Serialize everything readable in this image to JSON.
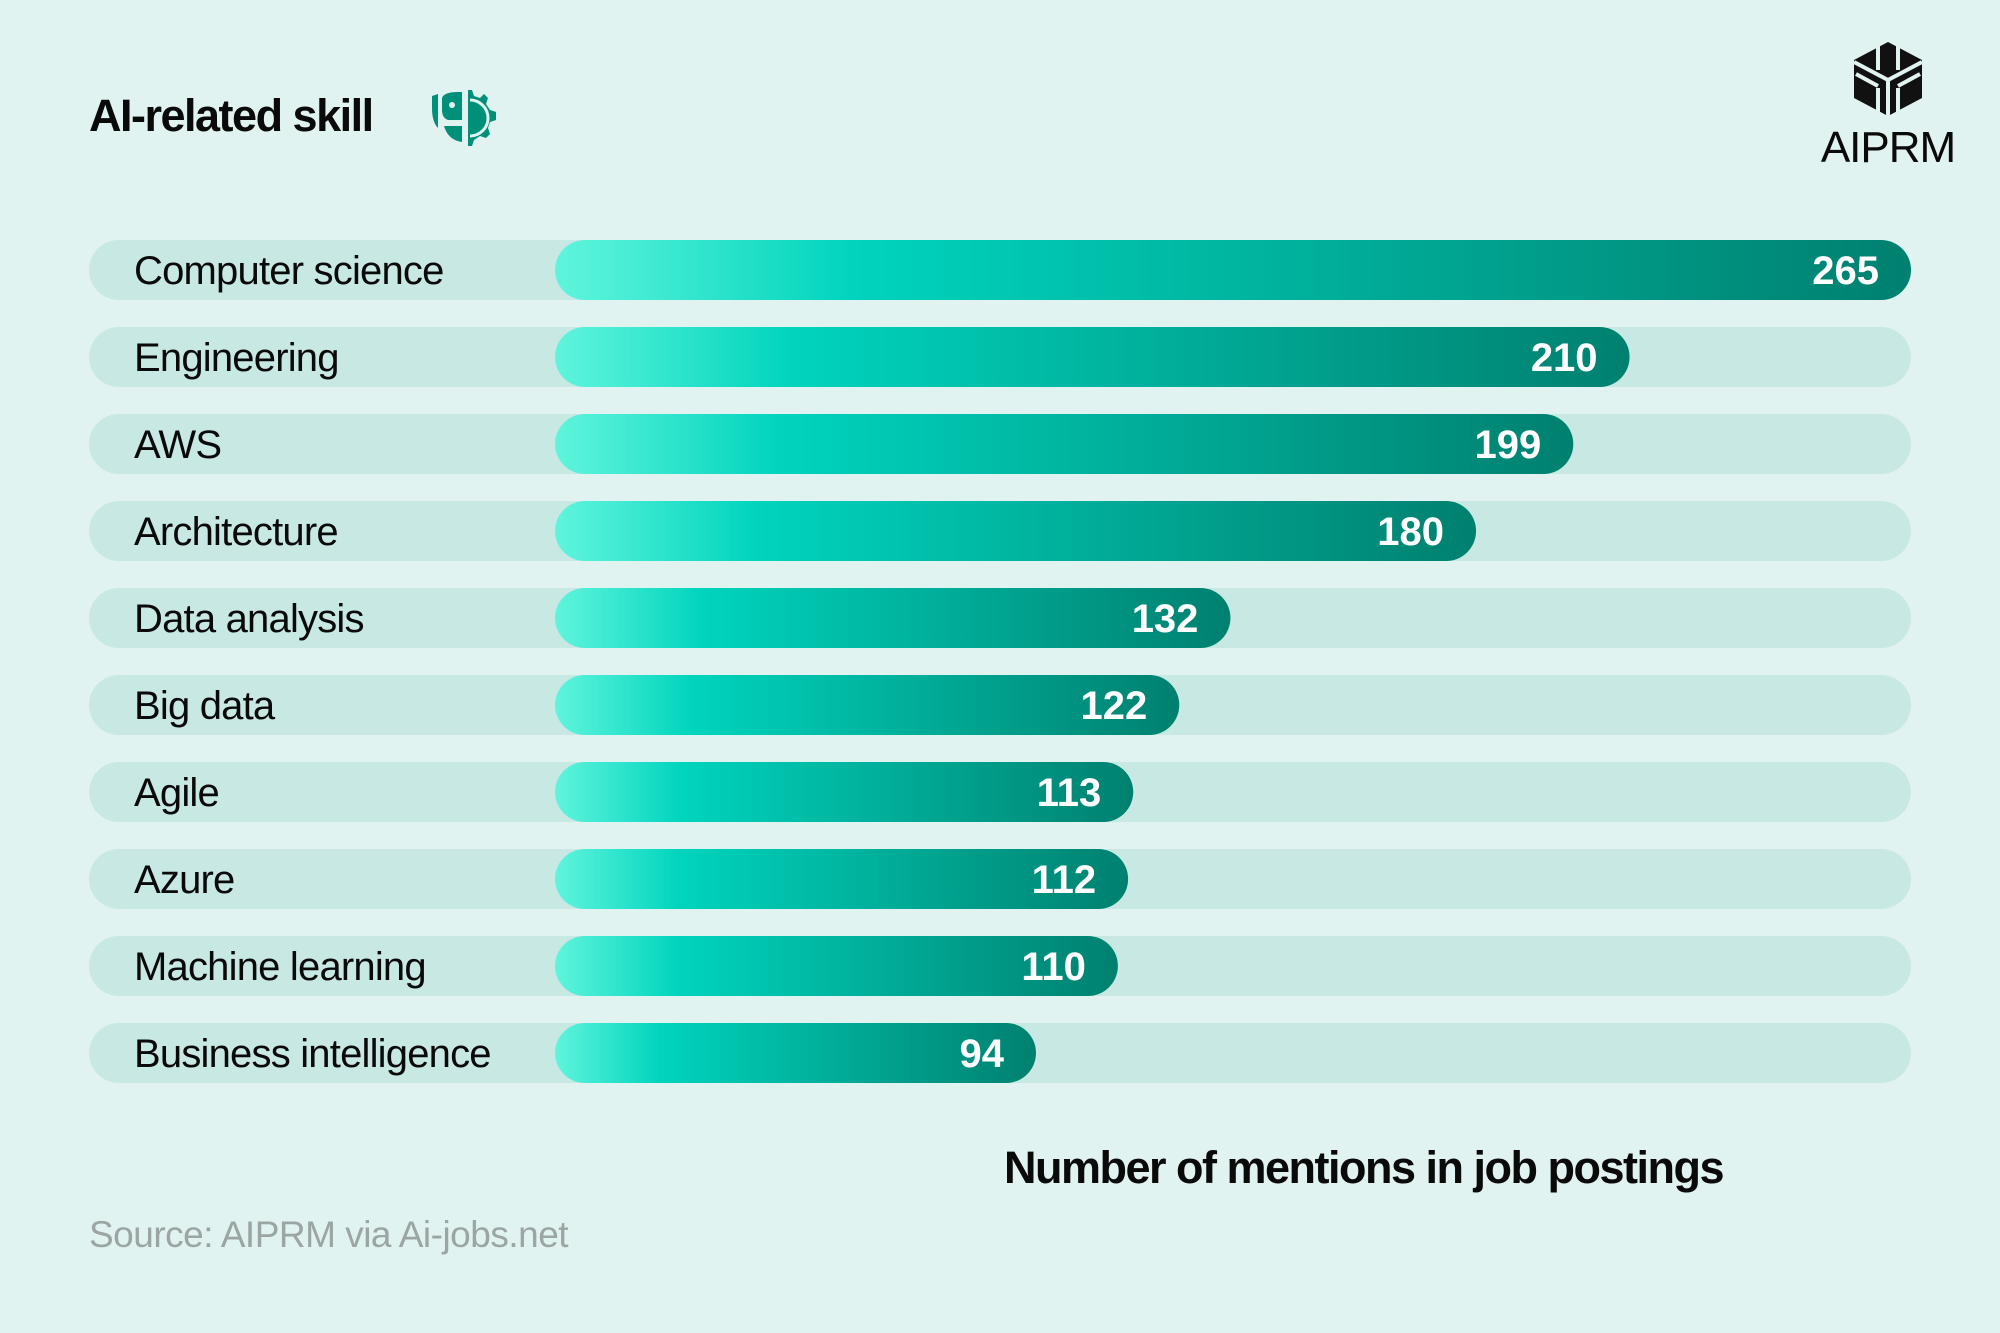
{
  "header": {
    "title": "AI-related skill",
    "icon": "ai-gear-head-icon"
  },
  "logo": {
    "text": "AIPRM",
    "icon": "aiprm-hexagon-logo"
  },
  "chart_data": {
    "type": "bar",
    "orientation": "horizontal",
    "categories": [
      "Computer science",
      "Engineering",
      "AWS",
      "Architecture",
      "Data analysis",
      "Big data",
      "Agile",
      "Azure",
      "Machine learning",
      "Business intelligence"
    ],
    "values": [
      265,
      210,
      199,
      180,
      132,
      122,
      113,
      112,
      110,
      94
    ],
    "xlabel": "Number of mentions in job postings",
    "ylabel": "",
    "xlim": [
      0,
      265
    ],
    "grid": false,
    "data_labels": true
  },
  "source": "Source: AIPRM via Ai-jobs.net",
  "colors": {
    "background": "#e1f3f0",
    "track": "#c8e8e4",
    "bar_start": "#5ff5dc",
    "bar_mid": "#00d4bd",
    "bar_end": "#00806f",
    "icon": "#00907a"
  }
}
